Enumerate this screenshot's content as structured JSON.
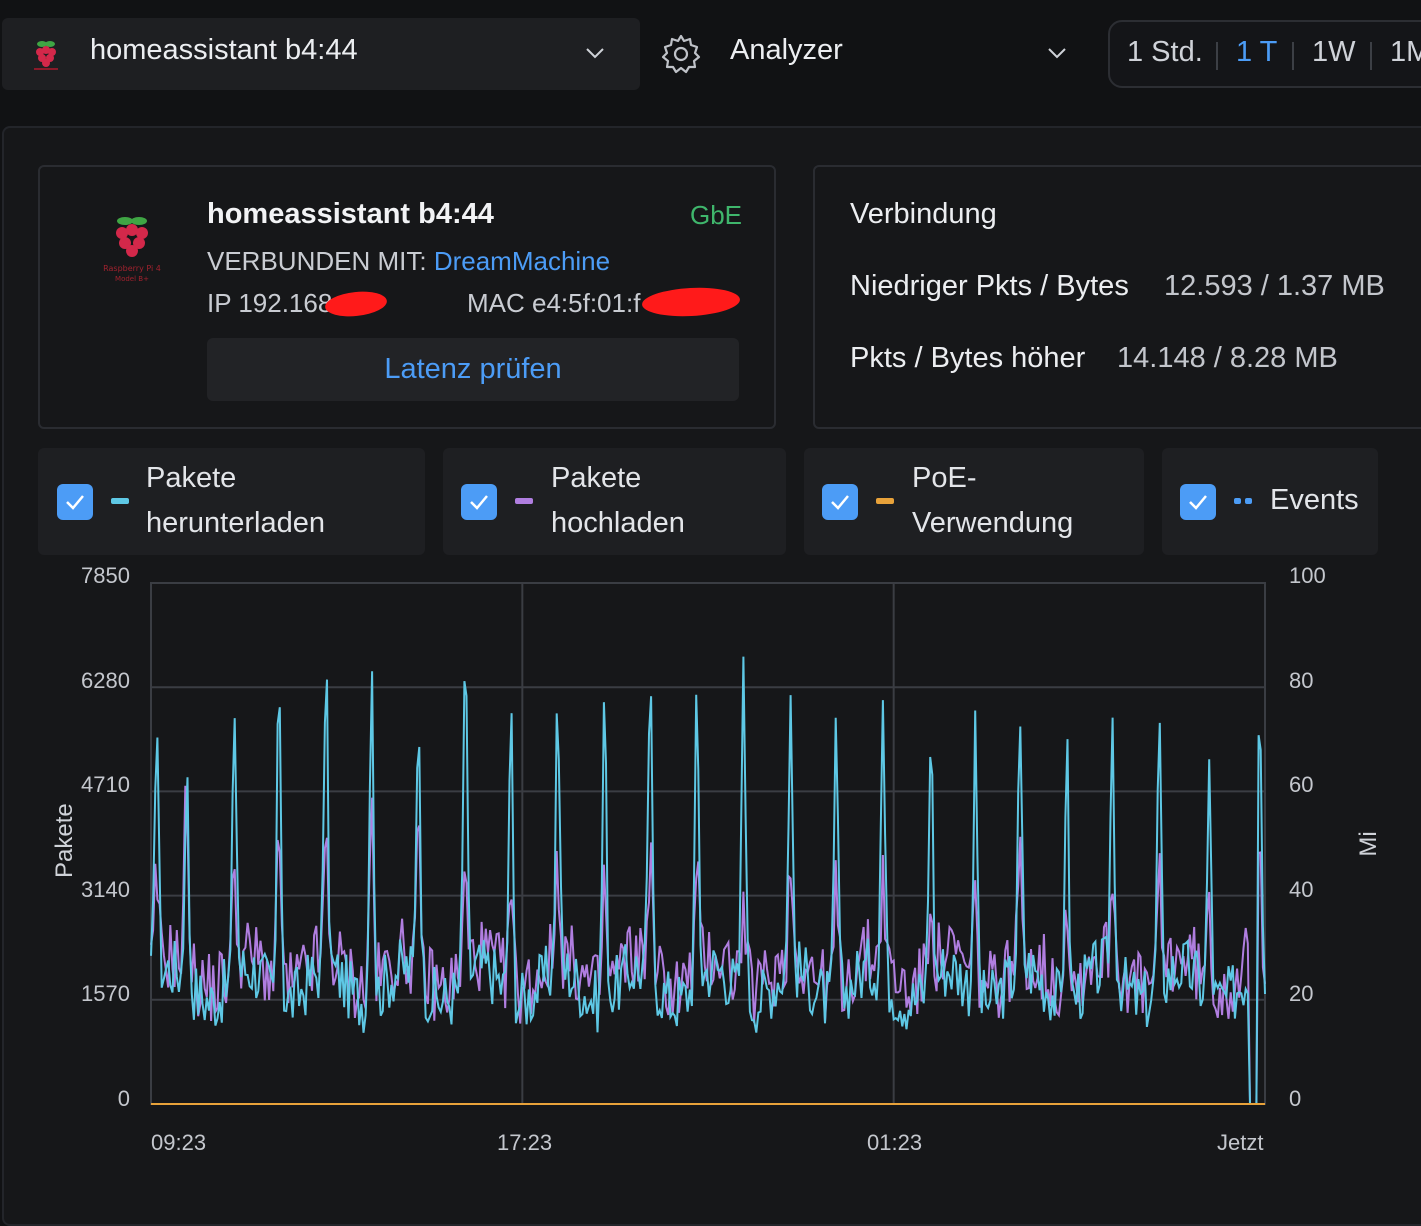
{
  "header": {
    "device_name": "homeassistant b4:44",
    "view_name": "Analyzer",
    "ranges": [
      "1 Std.",
      "1 T",
      "1W",
      "1M"
    ],
    "active_range": "1 T"
  },
  "device_card": {
    "title": "homeassistant b4:44",
    "speed": "GbE",
    "connected_label": "VERBUNDEN MIT:",
    "uplink": "DreamMachine",
    "ip": "IP 192.168",
    "mac": "MAC e4:5f:01:f",
    "latency_button": "Latenz prüfen",
    "logo_text": "Raspberry Pi 4 Model B+"
  },
  "connection": {
    "title": "Verbindung",
    "low_label": "Niedriger Pkts / Bytes",
    "low_value": "12.593 / 1.37 MB",
    "high_label": "Pkts / Bytes höher",
    "high_value": "14.148 / 8.28 MB"
  },
  "legend": [
    {
      "line1": "Pakete",
      "line2": "herunterladen",
      "color": "#5ec8e5",
      "checked": true
    },
    {
      "line1": "Pakete",
      "line2": "hochladen",
      "color": "#b07ee0",
      "checked": true
    },
    {
      "line1": "PoE-",
      "line2": "Verwendung",
      "color": "#e8a23a",
      "checked": true
    },
    {
      "line1": "Events",
      "line2": "",
      "color": "#4c9cf6",
      "checked": true
    }
  ],
  "chart_data": {
    "type": "line",
    "ylabel": "Pakete",
    "y2label": "Mi",
    "ylim": [
      0,
      7850
    ],
    "y2lim": [
      0,
      100
    ],
    "yticks": [
      "7850",
      "6280",
      "4710",
      "3140",
      "1570",
      "0"
    ],
    "y2ticks": [
      "100",
      "80",
      "60",
      "40",
      "20",
      "0"
    ],
    "xticks": [
      "09:23",
      "17:23",
      "01:23",
      "Jetzt"
    ],
    "grid": true,
    "series": [
      {
        "name": "Pakete herunterladen",
        "color": "#5ec8e5",
        "baseline": 1800,
        "peaks": [
          [
            0.005,
            5900
          ],
          [
            0.032,
            4950
          ],
          [
            0.075,
            5930
          ],
          [
            0.115,
            6700
          ],
          [
            0.157,
            6400
          ],
          [
            0.198,
            7100
          ],
          [
            0.24,
            5960
          ],
          [
            0.282,
            6800
          ],
          [
            0.323,
            6100
          ],
          [
            0.365,
            5920
          ],
          [
            0.407,
            6430
          ],
          [
            0.448,
            6280
          ],
          [
            0.49,
            6000
          ],
          [
            0.532,
            7050
          ],
          [
            0.574,
            5900
          ],
          [
            0.615,
            5950
          ],
          [
            0.657,
            5970
          ],
          [
            0.7,
            5700
          ],
          [
            0.74,
            5650
          ],
          [
            0.78,
            5400
          ],
          [
            0.822,
            5700
          ],
          [
            0.863,
            5600
          ],
          [
            0.905,
            5600
          ],
          [
            0.95,
            5100
          ],
          [
            0.995,
            5980
          ]
        ]
      },
      {
        "name": "Pakete hochladen",
        "color": "#b07ee0",
        "baseline": 2000,
        "peaks": [
          [
            0.005,
            3300
          ],
          [
            0.032,
            4850
          ],
          [
            0.075,
            3550
          ],
          [
            0.115,
            4450
          ],
          [
            0.157,
            3700
          ],
          [
            0.198,
            4800
          ],
          [
            0.24,
            3800
          ],
          [
            0.282,
            3400
          ],
          [
            0.323,
            3500
          ],
          [
            0.365,
            3500
          ],
          [
            0.407,
            3600
          ],
          [
            0.448,
            3700
          ],
          [
            0.49,
            3550
          ],
          [
            0.532,
            3300
          ],
          [
            0.574,
            3450
          ],
          [
            0.615,
            3500
          ],
          [
            0.657,
            3400
          ],
          [
            0.7,
            3300
          ],
          [
            0.74,
            3250
          ],
          [
            0.78,
            3400
          ],
          [
            0.822,
            3500
          ],
          [
            0.863,
            3400
          ],
          [
            0.905,
            3350
          ],
          [
            0.95,
            3000
          ],
          [
            0.995,
            3650
          ]
        ]
      },
      {
        "name": "PoE-Verwendung",
        "color": "#e8a23a",
        "values": [
          0,
          0
        ]
      }
    ]
  }
}
